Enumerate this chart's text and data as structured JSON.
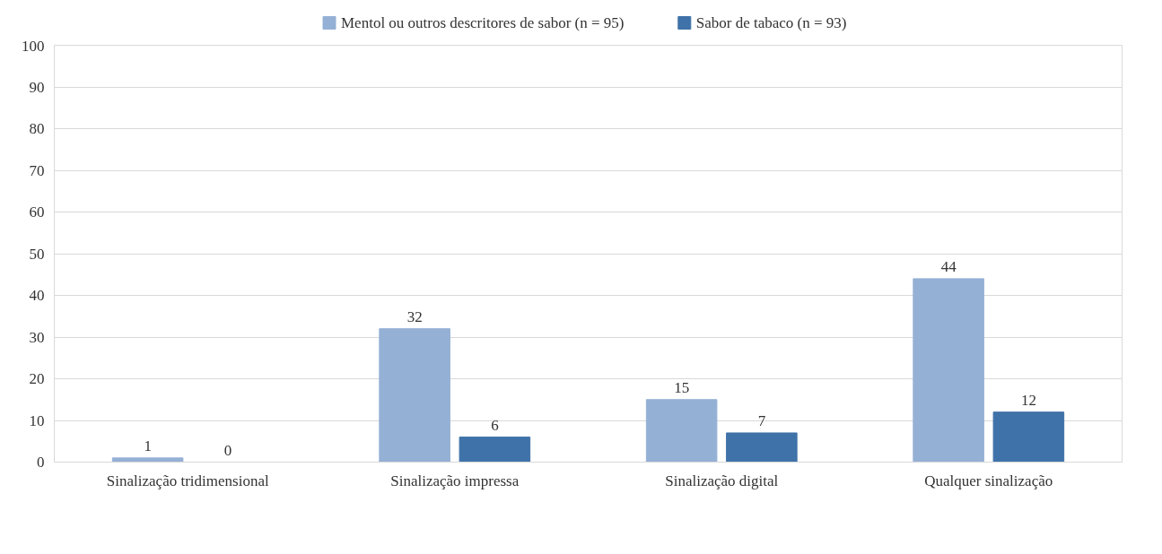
{
  "chart_data": {
    "type": "bar",
    "categories": [
      "Sinalização tridimensional",
      "Sinalização impressa",
      "Sinalização digital",
      "Qualquer sinalização"
    ],
    "series": [
      {
        "name": "Mentol ou outros descritores de sabor (n = 95)",
        "color": "#95b0d5",
        "values": [
          1,
          32,
          15,
          44
        ]
      },
      {
        "name": "Sabor de tabaco (n = 93)",
        "color": "#3f72a8",
        "values": [
          0,
          6,
          7,
          12
        ]
      }
    ],
    "ylim": [
      0,
      100
    ],
    "yticks": [
      0,
      10,
      20,
      30,
      40,
      50,
      60,
      70,
      80,
      90,
      100
    ],
    "grid": "y",
    "legend": "top",
    "data_labels": true
  }
}
